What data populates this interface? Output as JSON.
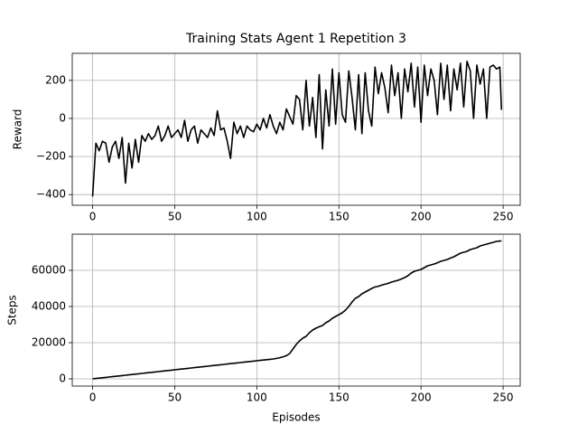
{
  "chart_data": [
    {
      "type": "line",
      "title": "Training Stats Agent 1 Repetition 3",
      "y_label": "Reward",
      "grid": true,
      "xlim": [
        -12.4,
        260.4
      ],
      "xticks": [
        0,
        50,
        100,
        150,
        200,
        250
      ],
      "ylim": [
        -456,
        342
      ],
      "yticks": [
        {
          "value": -400,
          "label": "−400"
        },
        {
          "value": -200,
          "label": "−200"
        },
        0,
        200
      ],
      "x": [
        0,
        2,
        4,
        6,
        8,
        10,
        12,
        14,
        16,
        18,
        20,
        22,
        24,
        26,
        28,
        30,
        32,
        34,
        36,
        38,
        40,
        42,
        44,
        46,
        48,
        50,
        52,
        54,
        56,
        58,
        60,
        62,
        64,
        66,
        68,
        70,
        72,
        74,
        76,
        78,
        80,
        82,
        84,
        86,
        88,
        90,
        92,
        94,
        96,
        98,
        100,
        102,
        104,
        106,
        108,
        110,
        112,
        114,
        116,
        118,
        120,
        122,
        124,
        126,
        128,
        130,
        132,
        134,
        136,
        138,
        140,
        142,
        144,
        146,
        148,
        150,
        152,
        154,
        156,
        158,
        160,
        162,
        164,
        166,
        168,
        170,
        172,
        174,
        176,
        178,
        180,
        182,
        184,
        186,
        188,
        190,
        192,
        194,
        196,
        198,
        200,
        202,
        204,
        206,
        208,
        210,
        212,
        214,
        216,
        218,
        220,
        222,
        224,
        226,
        228,
        230,
        232,
        234,
        236,
        238,
        240,
        242,
        244,
        246,
        248,
        249
      ],
      "series": [
        {
          "color": "#000000",
          "values": [
            -410,
            -130,
            -170,
            -120,
            -130,
            -230,
            -150,
            -120,
            -210,
            -100,
            -340,
            -130,
            -260,
            -110,
            -230,
            -90,
            -120,
            -80,
            -110,
            -90,
            -40,
            -120,
            -90,
            -40,
            -100,
            -80,
            -60,
            -100,
            -10,
            -120,
            -60,
            -40,
            -130,
            -60,
            -80,
            -100,
            -50,
            -90,
            40,
            -60,
            -50,
            -120,
            -210,
            -20,
            -80,
            -40,
            -100,
            -40,
            -60,
            -70,
            -30,
            -60,
            0,
            -50,
            20,
            -40,
            -80,
            -20,
            -60,
            50,
            10,
            -30,
            120,
            100,
            -60,
            200,
            -40,
            110,
            -100,
            230,
            -160,
            150,
            -40,
            260,
            -30,
            240,
            20,
            -20,
            250,
            110,
            -60,
            230,
            -80,
            240,
            40,
            -40,
            270,
            130,
            240,
            160,
            30,
            280,
            120,
            240,
            0,
            260,
            140,
            290,
            60,
            270,
            -20,
            280,
            120,
            260,
            200,
            20,
            290,
            100,
            280,
            40,
            260,
            150,
            290,
            60,
            300,
            250,
            0,
            280,
            180,
            260,
            0,
            270,
            280,
            260,
            270,
            45
          ]
        }
      ]
    },
    {
      "type": "line",
      "x_label": "Episodes",
      "y_label": "Steps",
      "grid": true,
      "xlim": [
        -12.4,
        260.4
      ],
      "xticks": [
        0,
        50,
        100,
        150,
        200,
        250
      ],
      "ylim": [
        -4000,
        80000
      ],
      "yticks": [
        0,
        20000,
        40000,
        60000
      ],
      "x": [
        0,
        2,
        4,
        6,
        8,
        10,
        12,
        14,
        16,
        18,
        20,
        22,
        24,
        26,
        28,
        30,
        32,
        34,
        36,
        38,
        40,
        42,
        44,
        46,
        48,
        50,
        52,
        54,
        56,
        58,
        60,
        62,
        64,
        66,
        68,
        70,
        72,
        74,
        76,
        78,
        80,
        82,
        84,
        86,
        88,
        90,
        92,
        94,
        96,
        98,
        100,
        102,
        104,
        106,
        108,
        110,
        112,
        114,
        116,
        118,
        120,
        122,
        124,
        126,
        128,
        130,
        132,
        134,
        136,
        138,
        140,
        142,
        144,
        146,
        148,
        150,
        152,
        154,
        156,
        158,
        160,
        162,
        164,
        166,
        168,
        170,
        172,
        174,
        176,
        178,
        180,
        182,
        184,
        186,
        188,
        190,
        192,
        194,
        196,
        198,
        200,
        202,
        204,
        206,
        208,
        210,
        212,
        214,
        216,
        218,
        220,
        222,
        224,
        226,
        228,
        230,
        232,
        234,
        236,
        238,
        240,
        242,
        244,
        246,
        248,
        249
      ],
      "series": [
        {
          "color": "#000000",
          "values": [
            0,
            200,
            400,
            600,
            800,
            1000,
            1200,
            1400,
            1600,
            1800,
            2000,
            2200,
            2400,
            2600,
            2800,
            3000,
            3200,
            3400,
            3600,
            3800,
            4000,
            4200,
            4400,
            4600,
            4800,
            5000,
            5200,
            5400,
            5600,
            5800,
            6000,
            6200,
            6400,
            6600,
            6800,
            7000,
            7200,
            7400,
            7600,
            7800,
            8000,
            8200,
            8400,
            8600,
            8800,
            9000,
            9200,
            9400,
            9600,
            9800,
            10000,
            10200,
            10400,
            10600,
            10800,
            11000,
            11300,
            11700,
            12200,
            12800,
            14000,
            16500,
            19000,
            21000,
            22500,
            23500,
            25500,
            27000,
            28000,
            28800,
            29500,
            31000,
            32000,
            33500,
            34500,
            35500,
            36500,
            38000,
            40000,
            42500,
            44500,
            45500,
            47000,
            48000,
            49000,
            50000,
            50800,
            51200,
            51800,
            52300,
            52800,
            53500,
            54000,
            54500,
            55200,
            56000,
            57000,
            58500,
            59500,
            60000,
            60500,
            61500,
            62500,
            63000,
            63500,
            64200,
            65000,
            65500,
            66000,
            66800,
            67500,
            68500,
            69500,
            70000,
            70500,
            71500,
            72000,
            72500,
            73500,
            74000,
            74500,
            75000,
            75500,
            76000,
            76200,
            76300
          ]
        }
      ]
    }
  ]
}
